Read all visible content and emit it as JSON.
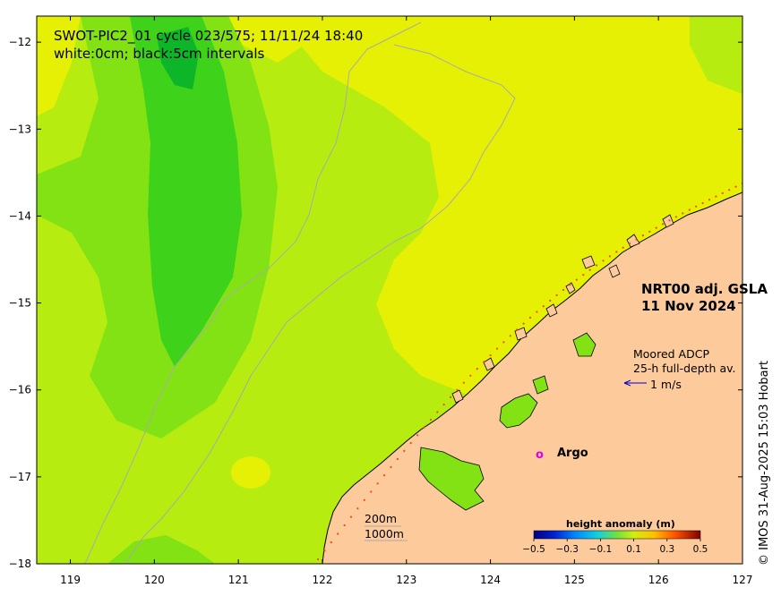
{
  "title": "SWOT-PIC2_01 cycle 023/575; 11/11/24 18:40",
  "subtitle": "white:0cm; black:5cm intervals",
  "product": {
    "line1": "NRT00 adj. GSLA",
    "line2": "11 Nov 2024"
  },
  "adcp": {
    "line1": "Moored ADCP",
    "line2": "25-h full-depth av.",
    "scale": "1 m/s"
  },
  "argo": {
    "marker": "o",
    "label": "Argo"
  },
  "isobaths": {
    "shallow": "200m",
    "deep": "1000m"
  },
  "colorbar": {
    "title": "height anomaly (m)",
    "ticks": [
      "−0.5",
      "−0.3",
      "−0.1",
      "0.1",
      "0.3",
      "0.5"
    ],
    "range": [
      -0.5,
      0.5
    ]
  },
  "credit": "© IMOS 31-Aug-2025 15:03 Hobart",
  "axes": {
    "x_ticks": [
      "119",
      "120",
      "121",
      "122",
      "123",
      "124",
      "125",
      "126",
      "127"
    ],
    "y_ticks": [
      "−12",
      "−13",
      "−14",
      "−15",
      "−16",
      "−17",
      "−18"
    ],
    "lon_range": [
      118.6,
      127
    ],
    "lat_range": [
      -18,
      -11.7
    ]
  },
  "colors": {
    "land": "#fdcb9b",
    "ocean_high": "#e6f005",
    "ocean_mid": "#b6ec10",
    "ocean_low": "#82e213",
    "ocean_lower": "#3ed21a",
    "ocean_lowest": "#0db628",
    "coastline": "#000000",
    "isobath": "#aaaaaa",
    "adcp_arrow": "#0000cc",
    "argo": "#e000e0",
    "track_dots": "#ff4400"
  }
}
